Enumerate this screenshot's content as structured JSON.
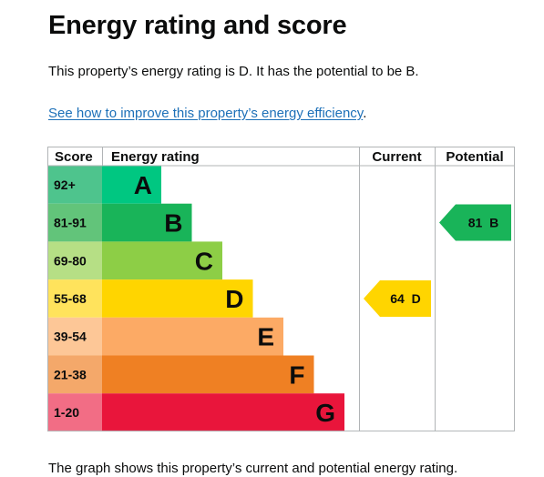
{
  "page": {
    "title": "Energy rating and score",
    "summary": "This property’s energy rating is D. It has the potential to be B.",
    "improve_link": "See how to improve this property’s energy efficiency",
    "improve_link_suffix": ".",
    "footer_text": "The graph shows this property’s current and potential energy rating."
  },
  "chart_data": {
    "type": "table",
    "headers": {
      "score": "Score",
      "rating": "Energy rating",
      "current": "Current",
      "potential": "Potential"
    },
    "bands": [
      {
        "letter": "A",
        "range": "92+",
        "color": "#00c781",
        "score_bg": "#4ec48d"
      },
      {
        "letter": "B",
        "range": "81-91",
        "color": "#19b459",
        "score_bg": "#62c47a"
      },
      {
        "letter": "C",
        "range": "69-80",
        "color": "#8dce46",
        "score_bg": "#b6df85"
      },
      {
        "letter": "D",
        "range": "55-68",
        "color": "#ffd500",
        "score_bg": "#ffe35c"
      },
      {
        "letter": "E",
        "range": "39-54",
        "color": "#fcaa65",
        "score_bg": "#fdc797"
      },
      {
        "letter": "F",
        "range": "21-38",
        "color": "#ef8023",
        "score_bg": "#f4a86a"
      },
      {
        "letter": "G",
        "range": "1-20",
        "color": "#e9153b",
        "score_bg": "#f26d85"
      }
    ],
    "current": {
      "score": 64,
      "band": "D",
      "label": "64  D",
      "color": "#ffd500"
    },
    "potential": {
      "score": 81,
      "band": "B",
      "label": "81  B",
      "color": "#19b459"
    }
  }
}
